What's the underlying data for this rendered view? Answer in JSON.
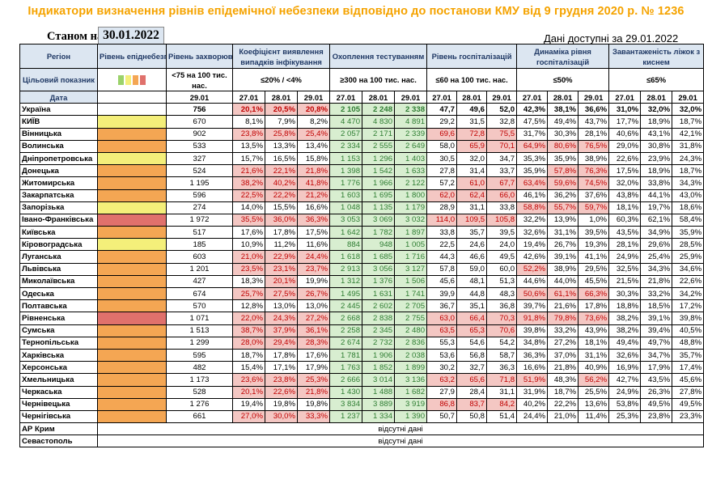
{
  "title": "Індикатори визначення рівнів епідемічної небезпеки відповідно до постанови КМУ від 9 грудня 2020 р. № 1236",
  "as_of_label": "Станом на",
  "as_of_date": "30.01.2022",
  "data_available": "Дані доступні за 29.01.2022",
  "headers": {
    "region": "Регіон",
    "target": "Цільовий показник",
    "date": "Дата",
    "level": "Рівень епіднебезпеки",
    "incidence": "Рівень захворюваності",
    "detection": "Коефіцієнт виявлення випадків інфікування",
    "testing": "Охоплення тестуванням",
    "hosp": "Рівень госпіталізацій",
    "dynamics": "Динаміка рівня госпіталізацій",
    "beds": "Завантаженість ліжок з киснем",
    "t_incidence": "<75 на 100 тис. нас.",
    "t_detection": "≤20% / <4%",
    "t_testing": "≥300 на 100 тис. нас.",
    "t_hosp": "≤60 на 100 тис. нас.",
    "t_dynamics": "≤50%",
    "t_beds": "≤65%",
    "d_incidence": "29.01",
    "d1": "27.01",
    "d2": "28.01",
    "d3": "29.01"
  },
  "level_legend_colors": [
    "#9bd26a",
    "#f4ef7a",
    "#f4a653",
    "#e0716c"
  ],
  "no_data": "відсутні дані",
  "rows": [
    {
      "name": "Україна",
      "level": "",
      "inc": "756",
      "det": [
        "20,1%",
        "20,5%",
        "20,8%"
      ],
      "tst": [
        "2 105",
        "2 248",
        "2 338"
      ],
      "hsp": [
        "47,7",
        "49,6",
        "52,0"
      ],
      "dyn": [
        "42,3%",
        "38,1%",
        "36,6%"
      ],
      "bed": [
        "31,0%",
        "32,0%",
        "32,0%"
      ],
      "ukr": true
    },
    {
      "name": "КИЇВ",
      "level": "yellow",
      "inc": "670",
      "det": [
        "8,1%",
        "7,9%",
        "8,2%"
      ],
      "tst": [
        "4 470",
        "4 830",
        "4 891"
      ],
      "hsp": [
        "29,2",
        "31,5",
        "32,8"
      ],
      "dyn": [
        "47,5%",
        "49,4%",
        "43,7%"
      ],
      "bed": [
        "17,7%",
        "18,9%",
        "18,7%"
      ]
    },
    {
      "name": "Вінницька",
      "level": "orange",
      "inc": "902",
      "det": [
        "23,8%",
        "25,8%",
        "25,4%"
      ],
      "tst": [
        "2 057",
        "2 171",
        "2 339"
      ],
      "hsp": [
        "69,6",
        "72,8",
        "75,5"
      ],
      "dyn": [
        "31,7%",
        "30,3%",
        "28,1%"
      ],
      "bed": [
        "40,6%",
        "43,1%",
        "42,1%"
      ]
    },
    {
      "name": "Волинська",
      "level": "orange",
      "inc": "533",
      "det": [
        "13,5%",
        "13,3%",
        "13,4%"
      ],
      "tst": [
        "2 334",
        "2 555",
        "2 649"
      ],
      "hsp": [
        "58,0",
        "65,9",
        "70,1"
      ],
      "dyn": [
        "64,9%",
        "80,6%",
        "76,5%"
      ],
      "bed": [
        "29,0%",
        "30,8%",
        "31,8%"
      ]
    },
    {
      "name": "Дніпропетровська",
      "level": "yellow",
      "inc": "327",
      "det": [
        "15,7%",
        "16,5%",
        "15,8%"
      ],
      "tst": [
        "1 153",
        "1 296",
        "1 403"
      ],
      "hsp": [
        "30,5",
        "32,0",
        "34,7"
      ],
      "dyn": [
        "35,3%",
        "35,9%",
        "38,9%"
      ],
      "bed": [
        "22,6%",
        "23,9%",
        "24,3%"
      ]
    },
    {
      "name": "Донецька",
      "level": "orange",
      "inc": "524",
      "det": [
        "21,6%",
        "22,1%",
        "21,8%"
      ],
      "tst": [
        "1 398",
        "1 542",
        "1 633"
      ],
      "hsp": [
        "27,8",
        "31,4",
        "33,7"
      ],
      "dyn": [
        "35,9%",
        "57,8%",
        "76,3%"
      ],
      "bed": [
        "17,5%",
        "18,9%",
        "18,7%"
      ]
    },
    {
      "name": "Житомирська",
      "level": "orange",
      "inc": "1 195",
      "det": [
        "38,2%",
        "40,2%",
        "41,8%"
      ],
      "tst": [
        "1 776",
        "1 966",
        "2 122"
      ],
      "hsp": [
        "57,2",
        "61,0",
        "67,7"
      ],
      "dyn": [
        "63,4%",
        "59,6%",
        "74,5%"
      ],
      "bed": [
        "32,0%",
        "33,8%",
        "34,3%"
      ]
    },
    {
      "name": "Закарпатська",
      "level": "orange",
      "inc": "596",
      "det": [
        "22,5%",
        "22,2%",
        "21,2%"
      ],
      "tst": [
        "1 603",
        "1 695",
        "1 800"
      ],
      "hsp": [
        "62,0",
        "62,4",
        "66,0"
      ],
      "dyn": [
        "46,1%",
        "36,2%",
        "37,6%"
      ],
      "bed": [
        "43,8%",
        "44,1%",
        "43,0%"
      ]
    },
    {
      "name": "Запорізька",
      "level": "yellow",
      "inc": "274",
      "det": [
        "14,0%",
        "15,5%",
        "16,6%"
      ],
      "tst": [
        "1 048",
        "1 135",
        "1 179"
      ],
      "hsp": [
        "28,9",
        "31,1",
        "33,8"
      ],
      "dyn": [
        "58,8%",
        "55,7%",
        "59,7%"
      ],
      "bed": [
        "18,1%",
        "19,7%",
        "18,6%"
      ]
    },
    {
      "name": "Івано-Франківська",
      "level": "red",
      "inc": "1 972",
      "det": [
        "35,5%",
        "36,0%",
        "36,3%"
      ],
      "tst": [
        "3 053",
        "3 069",
        "3 032"
      ],
      "hsp": [
        "114,0",
        "109,5",
        "105,8"
      ],
      "dyn": [
        "32,2%",
        "13,9%",
        "1,0%"
      ],
      "bed": [
        "60,3%",
        "62,1%",
        "58,4%"
      ]
    },
    {
      "name": "Київська",
      "level": "orange",
      "inc": "517",
      "det": [
        "17,6%",
        "17,8%",
        "17,5%"
      ],
      "tst": [
        "1 642",
        "1 782",
        "1 897"
      ],
      "hsp": [
        "33,8",
        "35,7",
        "39,5"
      ],
      "dyn": [
        "32,6%",
        "31,1%",
        "39,5%"
      ],
      "bed": [
        "43,5%",
        "34,9%",
        "35,9%"
      ]
    },
    {
      "name": "Кіровоградська",
      "level": "yellow",
      "inc": "185",
      "det": [
        "10,9%",
        "11,2%",
        "11,6%"
      ],
      "tst": [
        "884",
        "948",
        "1 005"
      ],
      "hsp": [
        "22,5",
        "24,6",
        "24,0"
      ],
      "dyn": [
        "19,4%",
        "26,7%",
        "19,3%"
      ],
      "bed": [
        "28,1%",
        "29,6%",
        "28,5%"
      ]
    },
    {
      "name": "Луганська",
      "level": "orange",
      "inc": "603",
      "det": [
        "21,0%",
        "22,9%",
        "24,4%"
      ],
      "tst": [
        "1 618",
        "1 685",
        "1 716"
      ],
      "hsp": [
        "44,3",
        "46,6",
        "49,5"
      ],
      "dyn": [
        "42,6%",
        "39,1%",
        "41,1%"
      ],
      "bed": [
        "24,9%",
        "25,4%",
        "25,9%"
      ]
    },
    {
      "name": "Львівська",
      "level": "orange",
      "inc": "1 201",
      "det": [
        "23,5%",
        "23,1%",
        "23,7%"
      ],
      "tst": [
        "2 913",
        "3 056",
        "3 127"
      ],
      "hsp": [
        "57,8",
        "59,0",
        "60,0"
      ],
      "dyn": [
        "52,2%",
        "38,9%",
        "29,5%"
      ],
      "bed": [
        "32,5%",
        "34,3%",
        "34,6%"
      ]
    },
    {
      "name": "Миколаївська",
      "level": "orange",
      "inc": "427",
      "det": [
        "18,3%",
        "20,1%",
        "19,9%"
      ],
      "tst": [
        "1 312",
        "1 376",
        "1 506"
      ],
      "hsp": [
        "45,6",
        "48,1",
        "51,3"
      ],
      "dyn": [
        "44,6%",
        "44,0%",
        "45,5%"
      ],
      "bed": [
        "21,5%",
        "21,8%",
        "22,6%"
      ]
    },
    {
      "name": "Одеська",
      "level": "orange",
      "inc": "674",
      "det": [
        "25,7%",
        "27,5%",
        "26,7%"
      ],
      "tst": [
        "1 495",
        "1 631",
        "1 741"
      ],
      "hsp": [
        "39,9",
        "44,8",
        "48,3"
      ],
      "dyn": [
        "50,6%",
        "61,1%",
        "66,3%"
      ],
      "bed": [
        "30,3%",
        "33,2%",
        "34,2%"
      ]
    },
    {
      "name": "Полтавська",
      "level": "orange",
      "inc": "570",
      "det": [
        "12,8%",
        "13,0%",
        "13,0%"
      ],
      "tst": [
        "2 445",
        "2 602",
        "2 705"
      ],
      "hsp": [
        "36,7",
        "35,1",
        "36,8"
      ],
      "dyn": [
        "39,7%",
        "21,6%",
        "17,8%"
      ],
      "bed": [
        "18,8%",
        "18,5%",
        "17,2%"
      ]
    },
    {
      "name": "Рівненська",
      "level": "red",
      "inc": "1 071",
      "det": [
        "22,0%",
        "24,3%",
        "27,2%"
      ],
      "tst": [
        "2 668",
        "2 838",
        "2 755"
      ],
      "hsp": [
        "63,0",
        "66,4",
        "70,3"
      ],
      "dyn": [
        "91,8%",
        "79,8%",
        "73,6%"
      ],
      "bed": [
        "38,2%",
        "39,1%",
        "39,8%"
      ]
    },
    {
      "name": "Сумська",
      "level": "orange",
      "inc": "1 513",
      "det": [
        "38,7%",
        "37,9%",
        "36,1%"
      ],
      "tst": [
        "2 258",
        "2 345",
        "2 480"
      ],
      "hsp": [
        "63,5",
        "65,3",
        "70,6"
      ],
      "dyn": [
        "39,8%",
        "33,2%",
        "43,9%"
      ],
      "bed": [
        "38,2%",
        "39,4%",
        "40,5%"
      ]
    },
    {
      "name": "Тернопільська",
      "level": "orange",
      "inc": "1 299",
      "det": [
        "28,0%",
        "29,4%",
        "28,3%"
      ],
      "tst": [
        "2 674",
        "2 732",
        "2 836"
      ],
      "hsp": [
        "55,3",
        "54,6",
        "54,2"
      ],
      "dyn": [
        "34,8%",
        "27,2%",
        "18,1%"
      ],
      "bed": [
        "49,4%",
        "49,7%",
        "48,8%"
      ]
    },
    {
      "name": "Харківська",
      "level": "orange",
      "inc": "595",
      "det": [
        "18,7%",
        "17,8%",
        "17,6%"
      ],
      "tst": [
        "1 781",
        "1 906",
        "2 038"
      ],
      "hsp": [
        "53,6",
        "56,8",
        "58,7"
      ],
      "dyn": [
        "36,3%",
        "37,0%",
        "31,1%"
      ],
      "bed": [
        "32,6%",
        "34,7%",
        "35,7%"
      ]
    },
    {
      "name": "Херсонська",
      "level": "orange",
      "inc": "482",
      "det": [
        "15,4%",
        "17,1%",
        "17,9%"
      ],
      "tst": [
        "1 763",
        "1 852",
        "1 899"
      ],
      "hsp": [
        "30,2",
        "32,7",
        "36,3"
      ],
      "dyn": [
        "16,6%",
        "21,8%",
        "40,9%"
      ],
      "bed": [
        "16,9%",
        "17,9%",
        "17,4%"
      ]
    },
    {
      "name": "Хмельницька",
      "level": "orange",
      "inc": "1 173",
      "det": [
        "23,6%",
        "23,8%",
        "25,3%"
      ],
      "tst": [
        "2 666",
        "3 014",
        "3 136"
      ],
      "hsp": [
        "63,2",
        "65,6",
        "71,8"
      ],
      "dyn": [
        "51,9%",
        "48,3%",
        "56,2%"
      ],
      "bed": [
        "42,7%",
        "43,5%",
        "45,6%"
      ]
    },
    {
      "name": "Черкаська",
      "level": "orange",
      "inc": "528",
      "det": [
        "20,1%",
        "22,6%",
        "21,8%"
      ],
      "tst": [
        "1 430",
        "1 488",
        "1 682"
      ],
      "hsp": [
        "27,9",
        "28,4",
        "31,1"
      ],
      "dyn": [
        "31,9%",
        "18,7%",
        "25,5%"
      ],
      "bed": [
        "24,9%",
        "26,3%",
        "27,8%"
      ]
    },
    {
      "name": "Чернівецька",
      "level": "orange",
      "inc": "1 276",
      "det": [
        "19,4%",
        "19,8%",
        "19,8%"
      ],
      "tst": [
        "3 834",
        "3 889",
        "3 919"
      ],
      "hsp": [
        "86,8",
        "83,7",
        "84,2"
      ],
      "dyn": [
        "40,2%",
        "22,2%",
        "13,6%"
      ],
      "bed": [
        "53,8%",
        "49,5%",
        "49,5%"
      ]
    },
    {
      "name": "Чернігівська",
      "level": "orange",
      "inc": "661",
      "det": [
        "27,0%",
        "30,0%",
        "33,3%"
      ],
      "tst": [
        "1 237",
        "1 334",
        "1 390"
      ],
      "hsp": [
        "50,7",
        "50,8",
        "51,4"
      ],
      "dyn": [
        "24,4%",
        "21,0%",
        "11,4%"
      ],
      "bed": [
        "25,3%",
        "23,8%",
        "23,3%"
      ]
    }
  ],
  "empty_rows": [
    {
      "name": "АР Крим"
    },
    {
      "name": "Севастополь"
    }
  ]
}
